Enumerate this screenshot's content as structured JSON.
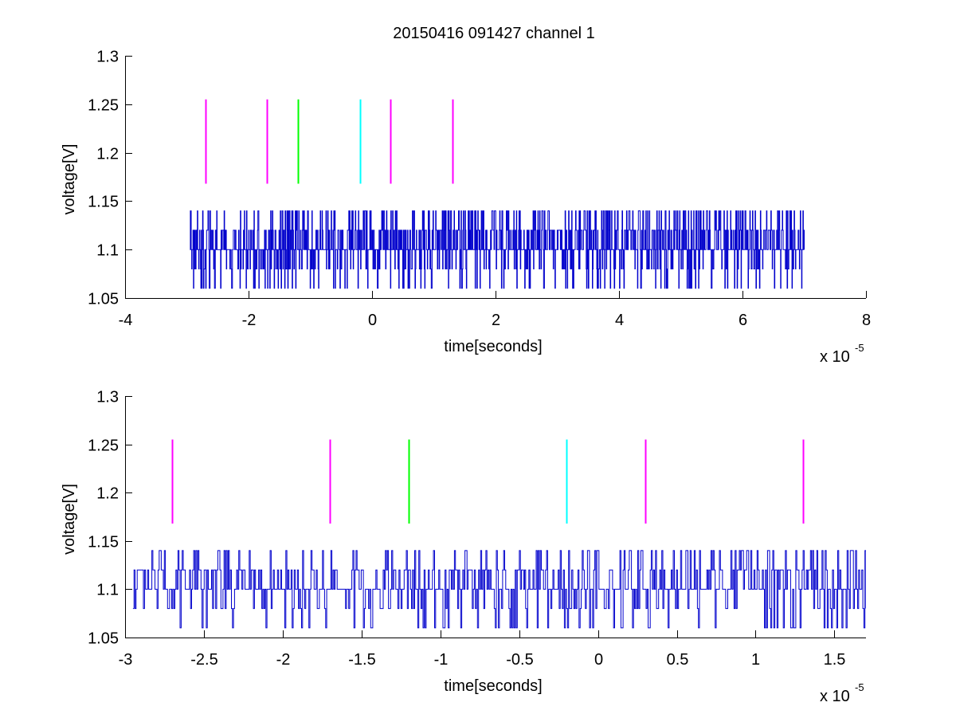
{
  "figure": {
    "title": "20150416 091427 channel 1",
    "background": "#ffffff"
  },
  "colors": {
    "signal": "#0000cc",
    "magenta": "#ff00ff",
    "green": "#00ff00",
    "cyan": "#00ffff"
  },
  "chart_data": [
    {
      "type": "line",
      "title": "20150416 091427 channel 1",
      "xlabel": "time[seconds]",
      "ylabel": "voltage[V]",
      "x_multiplier": "x 10",
      "x_multiplier_exponent": "-5",
      "xlim": [
        -4,
        8
      ],
      "ylim": [
        1.05,
        1.3
      ],
      "x_ticks": [
        -4,
        -2,
        0,
        2,
        4,
        6,
        8
      ],
      "x_tick_labels": [
        "-4",
        "-2",
        "0",
        "2",
        "4",
        "6",
        "8"
      ],
      "y_ticks": [
        1.05,
        1.1,
        1.15,
        1.2,
        1.25,
        1.3
      ],
      "y_tick_labels": [
        "1.05",
        "1.1",
        "1.15",
        "1.2",
        "1.25",
        "1.3"
      ],
      "grid": false,
      "box": "left-bottom",
      "signal": {
        "x_range": [
          -2.95,
          7.0
        ],
        "levels": [
          1.06,
          1.08,
          1.1,
          1.12,
          1.14
        ],
        "baseline": 1.1,
        "description_levels_visible": "quantized trace between 1.06 and 1.14 V"
      },
      "markers": [
        {
          "x": -2.7,
          "y0": 1.168,
          "y1": 1.255,
          "color": "magenta"
        },
        {
          "x": -1.7,
          "y0": 1.168,
          "y1": 1.255,
          "color": "magenta"
        },
        {
          "x": -1.2,
          "y0": 1.168,
          "y1": 1.255,
          "color": "green"
        },
        {
          "x": -0.2,
          "y0": 1.168,
          "y1": 1.255,
          "color": "cyan"
        },
        {
          "x": 0.3,
          "y0": 1.168,
          "y1": 1.255,
          "color": "magenta"
        },
        {
          "x": 1.3,
          "y0": 1.168,
          "y1": 1.255,
          "color": "magenta"
        }
      ]
    },
    {
      "type": "line",
      "title": "",
      "xlabel": "time[seconds]",
      "ylabel": "voltage[V]",
      "x_multiplier": "x 10",
      "x_multiplier_exponent": "-5",
      "xlim": [
        -3.0,
        1.7
      ],
      "ylim": [
        1.05,
        1.3
      ],
      "x_ticks": [
        -3,
        -2.5,
        -2,
        -1.5,
        -1,
        -0.5,
        0,
        0.5,
        1,
        1.5
      ],
      "x_tick_labels": [
        "-3",
        "-2.5",
        "-2",
        "-1.5",
        "-1",
        "-0.5",
        "0",
        "0.5",
        "1",
        "1.5"
      ],
      "y_ticks": [
        1.05,
        1.1,
        1.15,
        1.2,
        1.25,
        1.3
      ],
      "y_tick_labels": [
        "1.05",
        "1.1",
        "1.15",
        "1.2",
        "1.25",
        "1.3"
      ],
      "grid": false,
      "box": "left-bottom",
      "signal": {
        "x_range": [
          -2.95,
          1.7
        ],
        "levels": [
          1.06,
          1.08,
          1.1,
          1.12,
          1.14
        ],
        "baseline": 1.1,
        "description_levels_visible": "quantized trace between 1.06 and 1.14 V"
      },
      "markers": [
        {
          "x": -2.7,
          "y0": 1.168,
          "y1": 1.255,
          "color": "magenta"
        },
        {
          "x": -1.7,
          "y0": 1.168,
          "y1": 1.255,
          "color": "magenta"
        },
        {
          "x": -1.2,
          "y0": 1.168,
          "y1": 1.255,
          "color": "green"
        },
        {
          "x": -0.2,
          "y0": 1.168,
          "y1": 1.255,
          "color": "cyan"
        },
        {
          "x": 0.3,
          "y0": 1.168,
          "y1": 1.255,
          "color": "magenta"
        },
        {
          "x": 1.3,
          "y0": 1.168,
          "y1": 1.255,
          "color": "magenta"
        }
      ]
    }
  ]
}
